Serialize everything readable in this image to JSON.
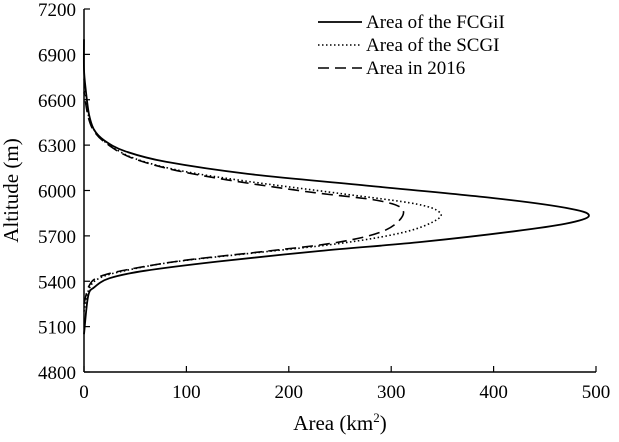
{
  "chart_data": {
    "type": "line",
    "orientation": "horizontal-profile",
    "xlabel": "Area (km²)",
    "xlabel_main": "Area (km",
    "xlabel_sup": "2",
    "xlabel_close": ")",
    "ylabel": "Altitude (m)",
    "xlim": [
      0,
      500
    ],
    "ylim": [
      4800,
      7200
    ],
    "x_ticks": [
      0,
      100,
      200,
      300,
      400,
      500
    ],
    "y_ticks": [
      4800,
      5100,
      5400,
      5700,
      6000,
      6300,
      6600,
      6900,
      7200
    ],
    "grid": false,
    "legend_position": "top-right",
    "series": [
      {
        "name": "Area of the FCGiI",
        "style": "solid",
        "color": "#000000",
        "points": [
          [
            0,
            5050
          ],
          [
            4,
            5300
          ],
          [
            10,
            5360
          ],
          [
            25,
            5420
          ],
          [
            60,
            5470
          ],
          [
            130,
            5530
          ],
          [
            230,
            5600
          ],
          [
            330,
            5660
          ],
          [
            420,
            5730
          ],
          [
            470,
            5780
          ],
          [
            493,
            5830
          ],
          [
            475,
            5880
          ],
          [
            400,
            5950
          ],
          [
            280,
            6030
          ],
          [
            160,
            6110
          ],
          [
            80,
            6190
          ],
          [
            40,
            6260
          ],
          [
            20,
            6330
          ],
          [
            10,
            6400
          ],
          [
            5,
            6500
          ],
          [
            2,
            6650
          ],
          [
            0,
            6800
          ],
          [
            0,
            7000
          ]
        ]
      },
      {
        "name": "Area of the SCGI",
        "style": "dotted",
        "color": "#000000",
        "points": [
          [
            0,
            5200
          ],
          [
            5,
            5350
          ],
          [
            15,
            5420
          ],
          [
            40,
            5470
          ],
          [
            90,
            5530
          ],
          [
            170,
            5590
          ],
          [
            250,
            5650
          ],
          [
            310,
            5720
          ],
          [
            340,
            5790
          ],
          [
            348,
            5850
          ],
          [
            325,
            5910
          ],
          [
            250,
            5980
          ],
          [
            160,
            6060
          ],
          [
            95,
            6130
          ],
          [
            50,
            6210
          ],
          [
            25,
            6300
          ],
          [
            12,
            6380
          ],
          [
            5,
            6480
          ],
          [
            2,
            6600
          ],
          [
            0,
            6750
          ]
        ]
      },
      {
        "name": "Area in 2016",
        "style": "dashed",
        "color": "#000000",
        "points": [
          [
            0,
            5250
          ],
          [
            5,
            5370
          ],
          [
            15,
            5430
          ],
          [
            45,
            5480
          ],
          [
            100,
            5540
          ],
          [
            180,
            5600
          ],
          [
            250,
            5660
          ],
          [
            295,
            5740
          ],
          [
            312,
            5860
          ],
          [
            290,
            5930
          ],
          [
            220,
            5990
          ],
          [
            140,
            6070
          ],
          [
            85,
            6140
          ],
          [
            45,
            6220
          ],
          [
            22,
            6310
          ],
          [
            10,
            6390
          ],
          [
            4,
            6490
          ],
          [
            0,
            6650
          ]
        ]
      }
    ]
  }
}
